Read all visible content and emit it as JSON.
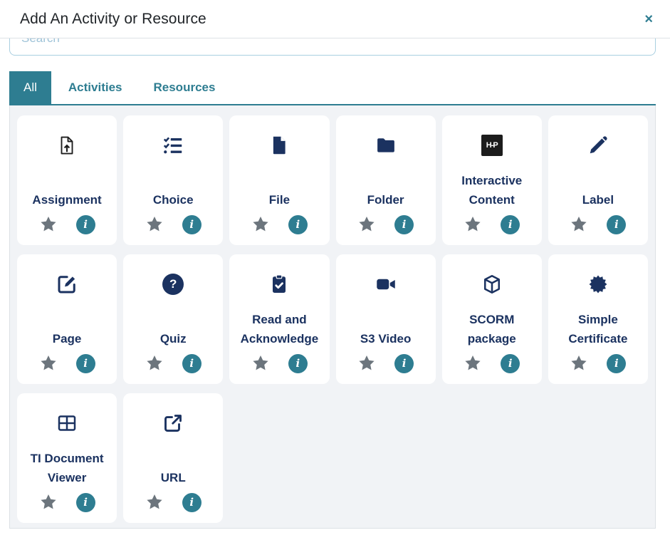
{
  "modal": {
    "title": "Add An Activity or Resource",
    "close": "×"
  },
  "search": {
    "placeholder": "Search"
  },
  "tabs": {
    "all": "All",
    "activities": "Activities",
    "resources": "Resources",
    "active_tab": "All"
  },
  "h5p_logo_text": "H-P",
  "cards": [
    {
      "label": "Assignment",
      "icon": "file-upload-icon"
    },
    {
      "label": "Choice",
      "icon": "list-check-icon"
    },
    {
      "label": "File",
      "icon": "file-icon"
    },
    {
      "label": "Folder",
      "icon": "folder-icon"
    },
    {
      "label": "Interactive Content",
      "icon": "h5p-icon"
    },
    {
      "label": "Label",
      "icon": "pencil-icon"
    },
    {
      "label": "Page",
      "icon": "pen-square-icon"
    },
    {
      "label": "Quiz",
      "icon": "question-circle-icon"
    },
    {
      "label": "Read and Acknowledge",
      "icon": "clipboard-check-icon"
    },
    {
      "label": "S3 Video",
      "icon": "video-camera-icon"
    },
    {
      "label": "SCORM package",
      "icon": "cube-icon"
    },
    {
      "label": "Simple Certificate",
      "icon": "certificate-seal-icon"
    },
    {
      "label": "TI Document Viewer",
      "icon": "table-grid-icon"
    },
    {
      "label": "URL",
      "icon": "external-link-icon"
    }
  ],
  "colors": {
    "accent_teal": "#2e7d91",
    "icon_navy": "#1b3260",
    "star_gray": "#6c757d",
    "panel_bg": "#f1f3f6",
    "border_gray": "#dee2e6",
    "search_border": "#a9cfe0"
  }
}
